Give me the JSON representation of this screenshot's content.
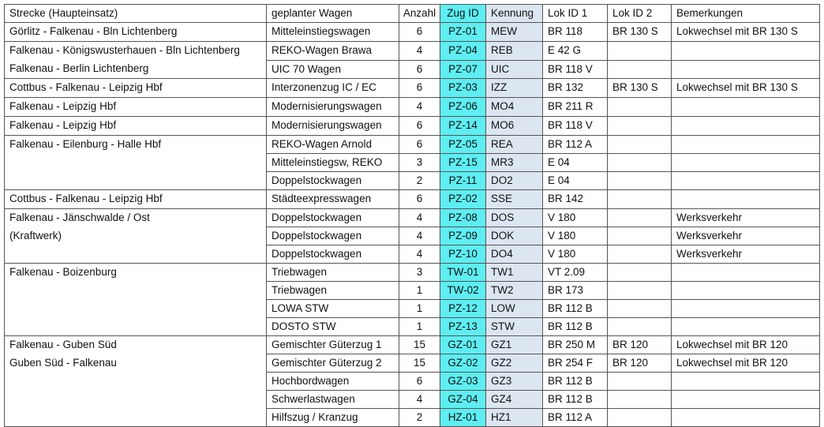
{
  "table": {
    "header": [
      "Strecke (Haupteinsatz)",
      "geplanter Wagen",
      "Anzahl",
      "Zug ID",
      "Kennung",
      "Lok ID 1",
      "Lok ID 2",
      "Bemerkungen"
    ],
    "groups": [
      {
        "strecke": [
          "Görlitz - Falkenau - Bln Lichtenberg"
        ],
        "rows": [
          {
            "wagen": "Mitteleinstiegswagen",
            "anzahl": 6,
            "zug_id": "PZ-01",
            "kennung": "MEW",
            "lok_id_1": "BR 118",
            "lok_id_2": "BR 130 S",
            "bemerkungen": "Lokwechsel mit BR 130 S"
          }
        ]
      },
      {
        "strecke": [
          "Falkenau - Königswusterhauen - Bln Lichtenberg",
          "Falkenau - Berlin Lichtenberg"
        ],
        "rows": [
          {
            "wagen": "REKO-Wagen Brawa",
            "anzahl": 4,
            "zug_id": "PZ-04",
            "kennung": "REB",
            "lok_id_1": "E 42 G"
          },
          {
            "wagen": "UIC 70 Wagen",
            "anzahl": 6,
            "zug_id": "PZ-07",
            "kennung": "UIC",
            "lok_id_1": "BR 118 V"
          }
        ]
      },
      {
        "strecke": [
          "Cottbus - Falkenau - Leipzig Hbf"
        ],
        "rows": [
          {
            "wagen": "Interzonenzug IC / EC",
            "anzahl": 6,
            "zug_id": "PZ-03",
            "kennung": "IZZ",
            "lok_id_1": "BR 132",
            "lok_id_2": "BR 130 S",
            "bemerkungen": "Lokwechsel mit BR 130 S"
          }
        ]
      },
      {
        "strecke": [
          "Falkenau - Leipzig Hbf"
        ],
        "rows": [
          {
            "wagen": "Modernisierungswagen",
            "anzahl": 4,
            "zug_id": "PZ-06",
            "kennung": "MO4",
            "lok_id_1": "BR 211 R"
          }
        ]
      },
      {
        "strecke": [
          "Falkenau - Leipzig Hbf"
        ],
        "rows": [
          {
            "wagen": "Modernisierungswagen",
            "anzahl": 6,
            "zug_id": "PZ-14",
            "kennung": "MO6",
            "lok_id_1": "BR 118 V"
          }
        ]
      },
      {
        "strecke": [
          "Falkenau - Eilenburg - Halle Hbf"
        ],
        "rows": [
          {
            "wagen": "REKO-Wagen Arnold",
            "anzahl": 6,
            "zug_id": "PZ-05",
            "kennung": "REA",
            "lok_id_1": "BR 112 A"
          },
          {
            "wagen": "Mitteleinstiegsw, REKO",
            "anzahl": 3,
            "zug_id": "PZ-15",
            "kennung": "MR3",
            "lok_id_1": "E 04"
          },
          {
            "wagen": "Doppelstockwagen",
            "anzahl": 2,
            "zug_id": "PZ-11",
            "kennung": "DO2",
            "lok_id_1": "E 04"
          }
        ]
      },
      {
        "strecke": [
          "Cottbus - Falkenau - Leipzig Hbf"
        ],
        "rows": [
          {
            "wagen": "Städteexpresswagen",
            "anzahl": 6,
            "zug_id": "PZ-02",
            "kennung": "SSE",
            "lok_id_1": "BR 142"
          }
        ]
      },
      {
        "strecke": [
          "Falkenau - Jänschwalde / Ost",
          "(Kraftwerk)"
        ],
        "rows": [
          {
            "wagen": "Doppelstockwagen",
            "anzahl": 4,
            "zug_id": "PZ-08",
            "kennung": "DOS",
            "lok_id_1": "V 180",
            "bemerkungen": "Werksverkehr"
          },
          {
            "wagen": "Doppelstockwagen",
            "anzahl": 4,
            "zug_id": "PZ-09",
            "kennung": "DOK",
            "lok_id_1": "V 180",
            "bemerkungen": "Werksverkehr"
          },
          {
            "wagen": "Doppelstockwagen",
            "anzahl": 4,
            "zug_id": "PZ-10",
            "kennung": "DO4",
            "lok_id_1": "V 180",
            "bemerkungen": "Werksverkehr"
          }
        ]
      },
      {
        "strecke": [
          "Falkenau - Boizenburg"
        ],
        "rows": [
          {
            "wagen": "Triebwagen",
            "anzahl": 3,
            "zug_id": "TW-01",
            "kennung": "TW1",
            "lok_id_1": "VT 2.09"
          },
          {
            "wagen": "Triebwagen",
            "anzahl": 1,
            "zug_id": "TW-02",
            "kennung": "TW2",
            "lok_id_1": "BR 173"
          },
          {
            "wagen": "LOWA STW",
            "anzahl": 1,
            "zug_id": "PZ-12",
            "kennung": "LOW",
            "lok_id_1": "BR 112 B"
          },
          {
            "wagen": "DOSTO STW",
            "anzahl": 1,
            "zug_id": "PZ-13",
            "kennung": "STW",
            "lok_id_1": "BR 112 B"
          }
        ]
      },
      {
        "strecke": [
          "Falkenau - Guben Süd",
          "Guben Süd - Falkenau"
        ],
        "rows": [
          {
            "wagen": "Gemischter Güterzug 1",
            "anzahl": 15,
            "zug_id": "GZ-01",
            "kennung": "GZ1",
            "lok_id_1": "BR 250 M",
            "lok_id_2": "BR 120",
            "bemerkungen": "Lokwechsel mit BR 120"
          },
          {
            "wagen": "Gemischter Güterzug 2",
            "anzahl": 15,
            "zug_id": "GZ-02",
            "kennung": "GZ2",
            "lok_id_1": "BR 254 F",
            "lok_id_2": "BR 120",
            "bemerkungen": "Lokwechsel mit BR 120"
          },
          {
            "wagen": "Hochbordwagen",
            "anzahl": 6,
            "zug_id": "GZ-03",
            "kennung": "GZ3",
            "lok_id_1": "BR 112 B"
          },
          {
            "wagen": "Schwerlastwagen",
            "anzahl": 4,
            "zug_id": "GZ-04",
            "kennung": "GZ4",
            "lok_id_1": "BR 112 B"
          },
          {
            "wagen": "Hilfszug / Kranzug",
            "anzahl": 2,
            "zug_id": "HZ-01",
            "kennung": "HZ1",
            "lok_id_1": "BR 112 A"
          }
        ]
      }
    ]
  }
}
